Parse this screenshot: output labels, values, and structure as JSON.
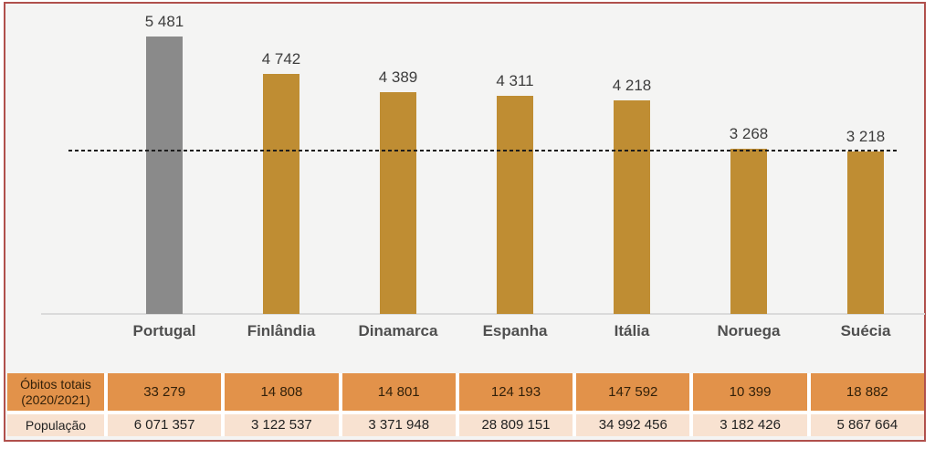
{
  "frame": {
    "border_color": "#b0504c",
    "background_color": "#f4f4f3"
  },
  "chart_data": {
    "type": "bar",
    "title": "",
    "categories": [
      "Portugal",
      "Finlândia",
      "Dinamarca",
      "Espanha",
      "Itália",
      "Noruega",
      "Suécia"
    ],
    "values": [
      5481,
      4742,
      4389,
      4311,
      4218,
      3268,
      3218
    ],
    "value_labels": [
      "5 481",
      "4 742",
      "4 389",
      "4 311",
      "4 218",
      "3 268",
      "3 218"
    ],
    "highlight_category": "Portugal",
    "highlight_color": "#8a8a8a",
    "bar_color": "#bf8d33",
    "reference_line": {
      "value": 3225,
      "style": "dashed",
      "color": "#1b1b1b"
    },
    "ylim": [
      0,
      5800
    ],
    "grid": false,
    "legend": null,
    "xlabel": "",
    "ylabel": ""
  },
  "table": {
    "rows": [
      {
        "label": "Óbitos totais (2020/2021)",
        "bg_color": "#e2924a",
        "values": [
          "33 279",
          "14 808",
          "14 801",
          "124 193",
          "147 592",
          "10 399",
          "18 882"
        ]
      },
      {
        "label": "População",
        "bg_color": "#f8e2d1",
        "values": [
          "6 071 357",
          "3 122 537",
          "3 371 948",
          "28 809 151",
          "34 992 456",
          "3 182 426",
          "5 867 664"
        ]
      }
    ]
  }
}
